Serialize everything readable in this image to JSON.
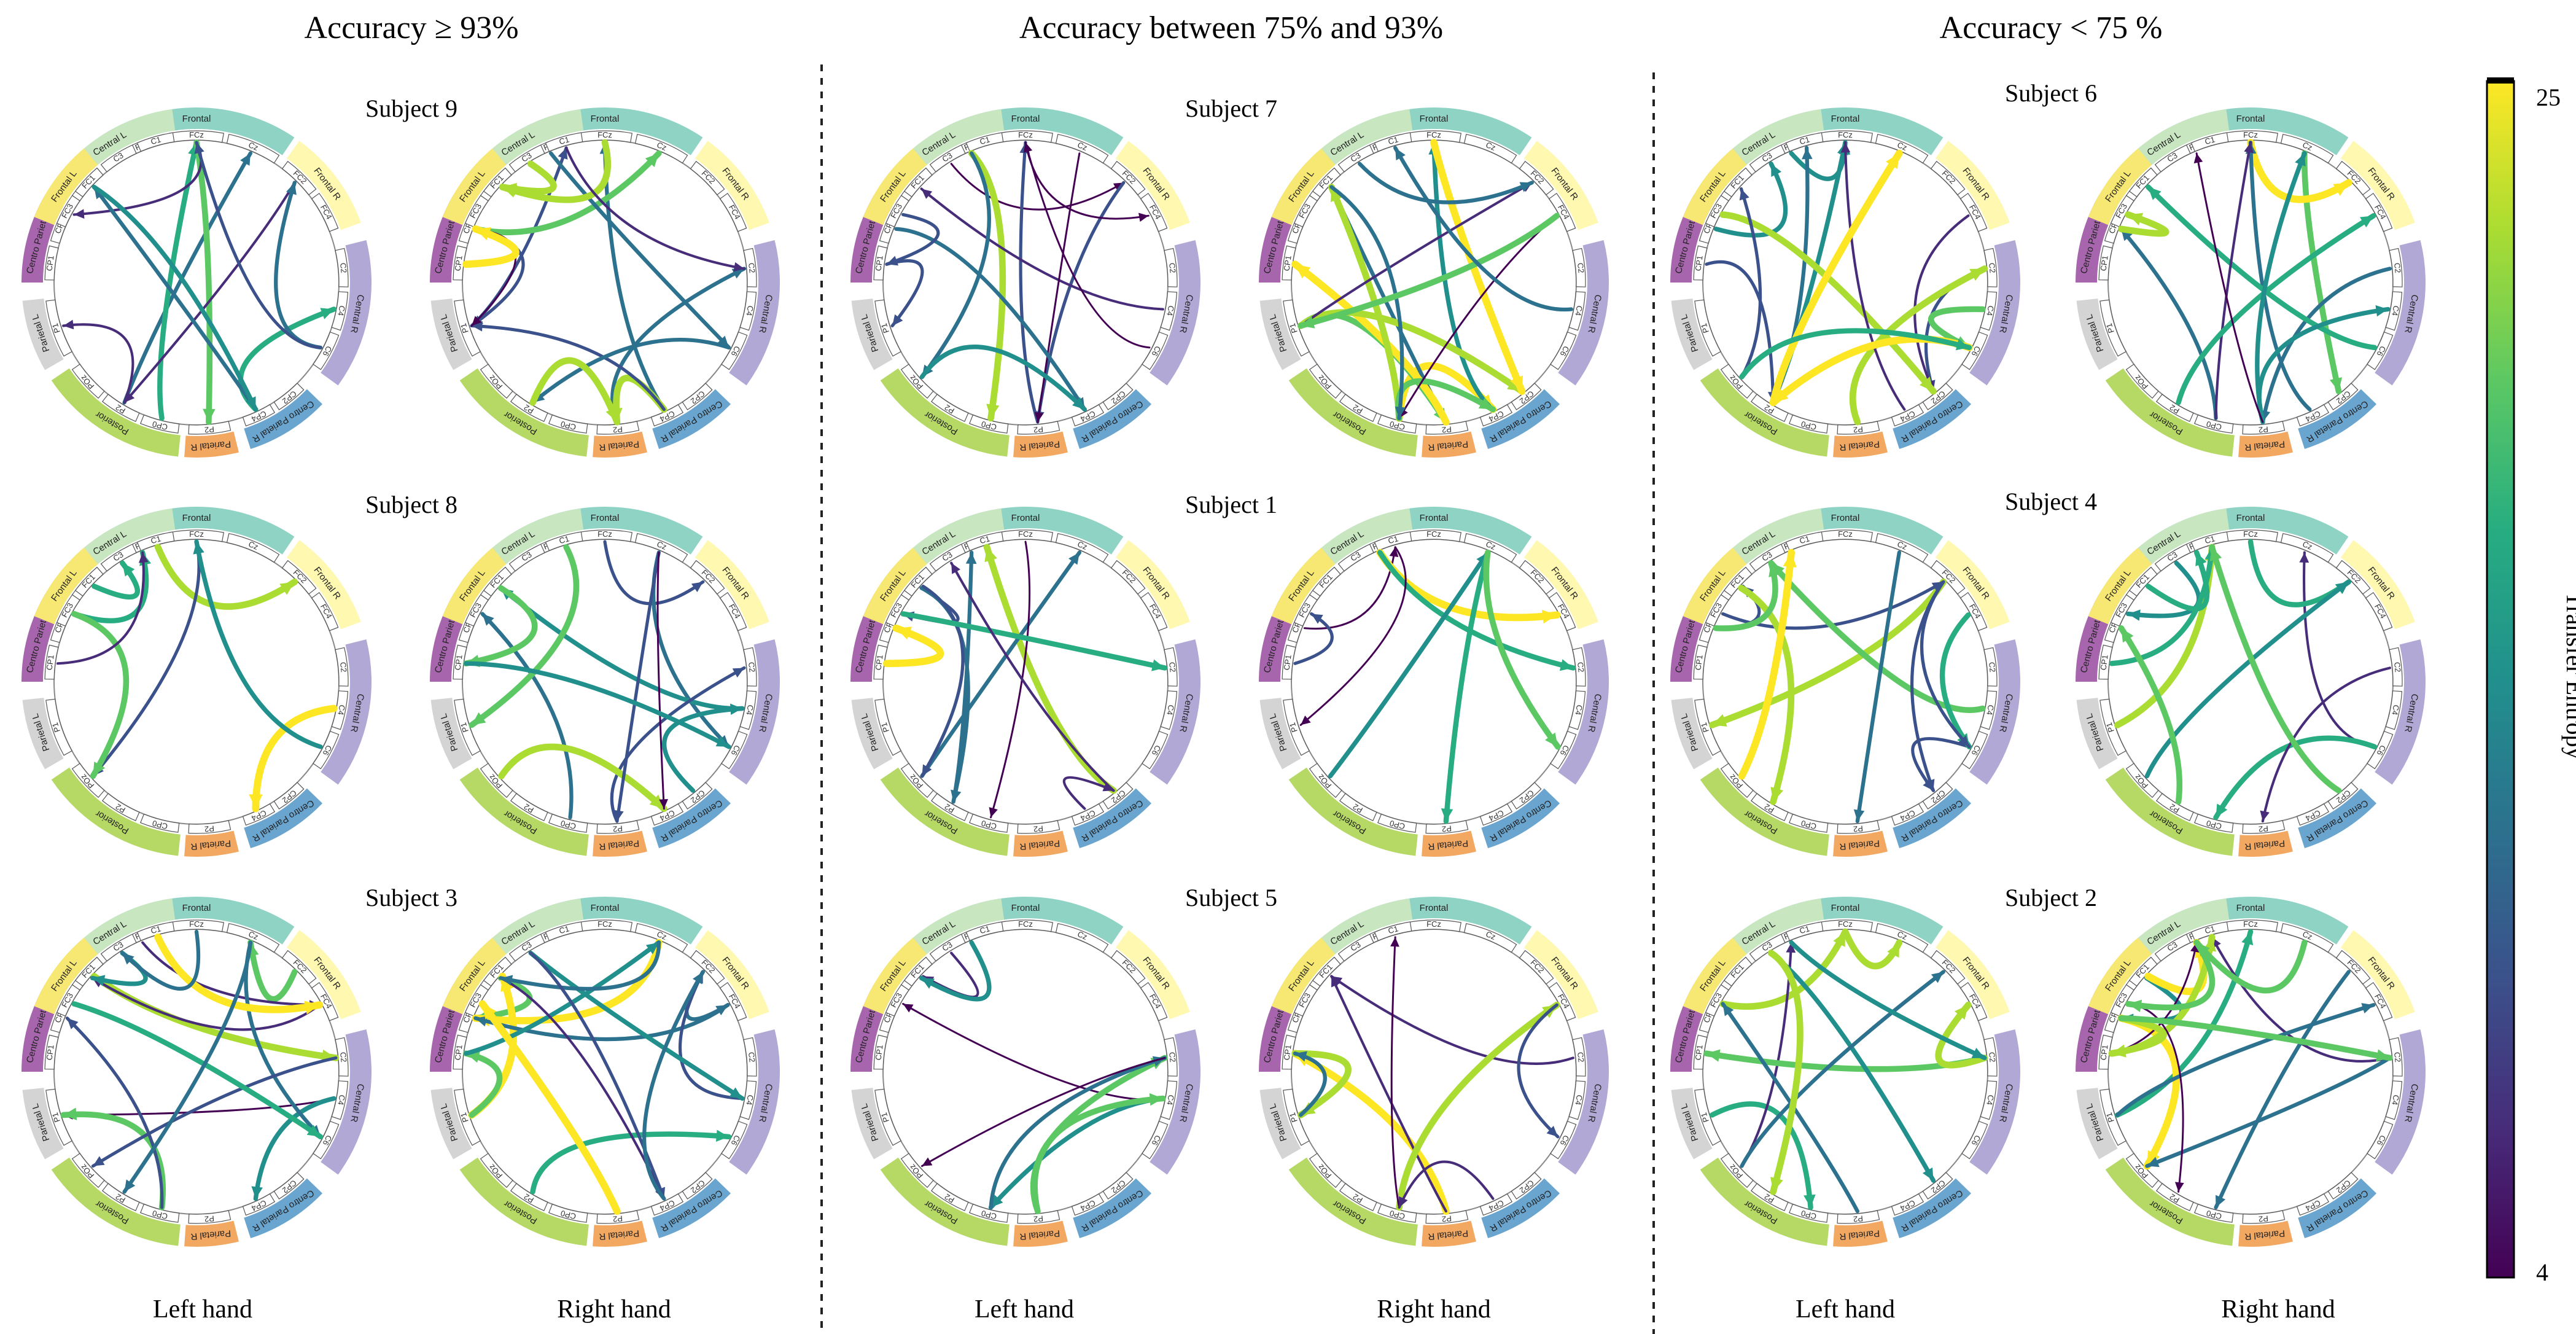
{
  "figure": {
    "group_titles": [
      "Accuracy ≥ 93%",
      "Accuracy between 75% and 93%",
      "Accuracy < 75 %"
    ],
    "hand_labels": [
      "Left hand",
      "Right hand"
    ],
    "subjects": [
      [
        "Subject 9",
        "Subject 8",
        "Subject 3"
      ],
      [
        "Subject 7",
        "Subject 1",
        "Subject 5"
      ],
      [
        "Subject 6",
        "Subject 4",
        "Subject 2"
      ]
    ],
    "regions": [
      {
        "name": "Frontal",
        "color": "#8fd3c5"
      },
      {
        "name": "Frontal R",
        "color": "#fff8b0"
      },
      {
        "name": "Central R",
        "color": "#b2a8d6"
      },
      {
        "name": "Centro Parietal R",
        "color": "#6aa5cf"
      },
      {
        "name": "Parietal R",
        "color": "#f3a862"
      },
      {
        "name": "Posterior",
        "color": "#b6d966"
      },
      {
        "name": "Parietal L",
        "color": "#d4d4d4"
      },
      {
        "name": "Centro Parietal L",
        "color": "#a765ad"
      },
      {
        "name": "Central L",
        "color": "#c8e6c0"
      },
      {
        "name": "Frontal L",
        "color": "#f6e873"
      }
    ],
    "channels": [
      [
        "Fz",
        "FCz",
        "Cz"
      ],
      [
        "FC2",
        "FC4"
      ],
      [
        "C2",
        "C4",
        "C6"
      ],
      [
        "CP2",
        "CP4"
      ],
      [
        "P2"
      ],
      [
        "CP0",
        "P2",
        "POz"
      ],
      [
        "P1"
      ],
      [
        "CP1",
        "CP3"
      ],
      [
        "C5",
        "C3",
        "C1"
      ],
      [
        "FC3",
        "FC1"
      ]
    ]
  },
  "colorbar": {
    "label": "Transfer Entropy",
    "max_label": "25",
    "min_label": "4",
    "min": 4,
    "max": 25,
    "colors": [
      "#440154",
      "#472c7a",
      "#3b518b",
      "#2c718e",
      "#21908d",
      "#27ad81",
      "#5cc863",
      "#aadc32",
      "#fde725"
    ]
  }
}
